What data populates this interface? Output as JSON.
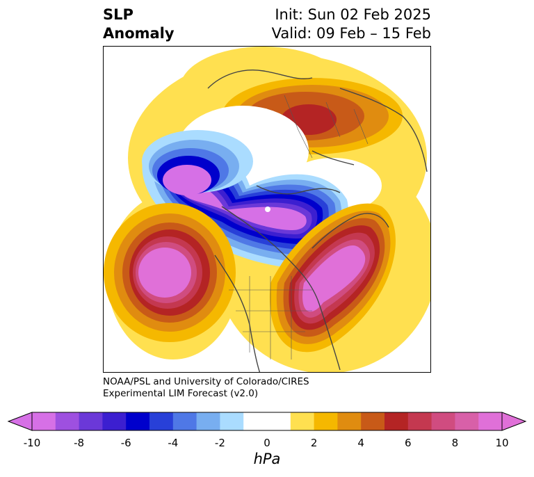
{
  "title": {
    "left_line1": "SLP",
    "left_line2": "Anomaly",
    "right_line1": "Init: Sun 02 Feb 2025",
    "right_line2": "Valid: 09 Feb – 15 Feb"
  },
  "credit": {
    "line1": "NOAA/PSL and University of Colorado/CIRES",
    "line2": "Experimental LIM Forecast (v2.0)"
  },
  "colorbar": {
    "units": "hPa",
    "tick_labels": [
      "-10",
      "-8",
      "-6",
      "-4",
      "-2",
      "0",
      "2",
      "4",
      "6",
      "8",
      "10"
    ],
    "colors": [
      "#d670e6",
      "#9e50e0",
      "#6b38d8",
      "#3c1fd0",
      "#0000cc",
      "#2840d8",
      "#4f78e6",
      "#78aef0",
      "#aadcff",
      "#ffffff",
      "#ffffff",
      "#ffe050",
      "#f5b800",
      "#e08c10",
      "#c85a18",
      "#b42424",
      "#c43850",
      "#d04c80",
      "#d860a8",
      "#e070d8"
    ],
    "extend_min_color": "#d670e6",
    "extend_max_color": "#e070d8"
  },
  "map": {
    "projection": "north-polar-stereographic",
    "field": "sea-level-pressure-anomaly"
  }
}
